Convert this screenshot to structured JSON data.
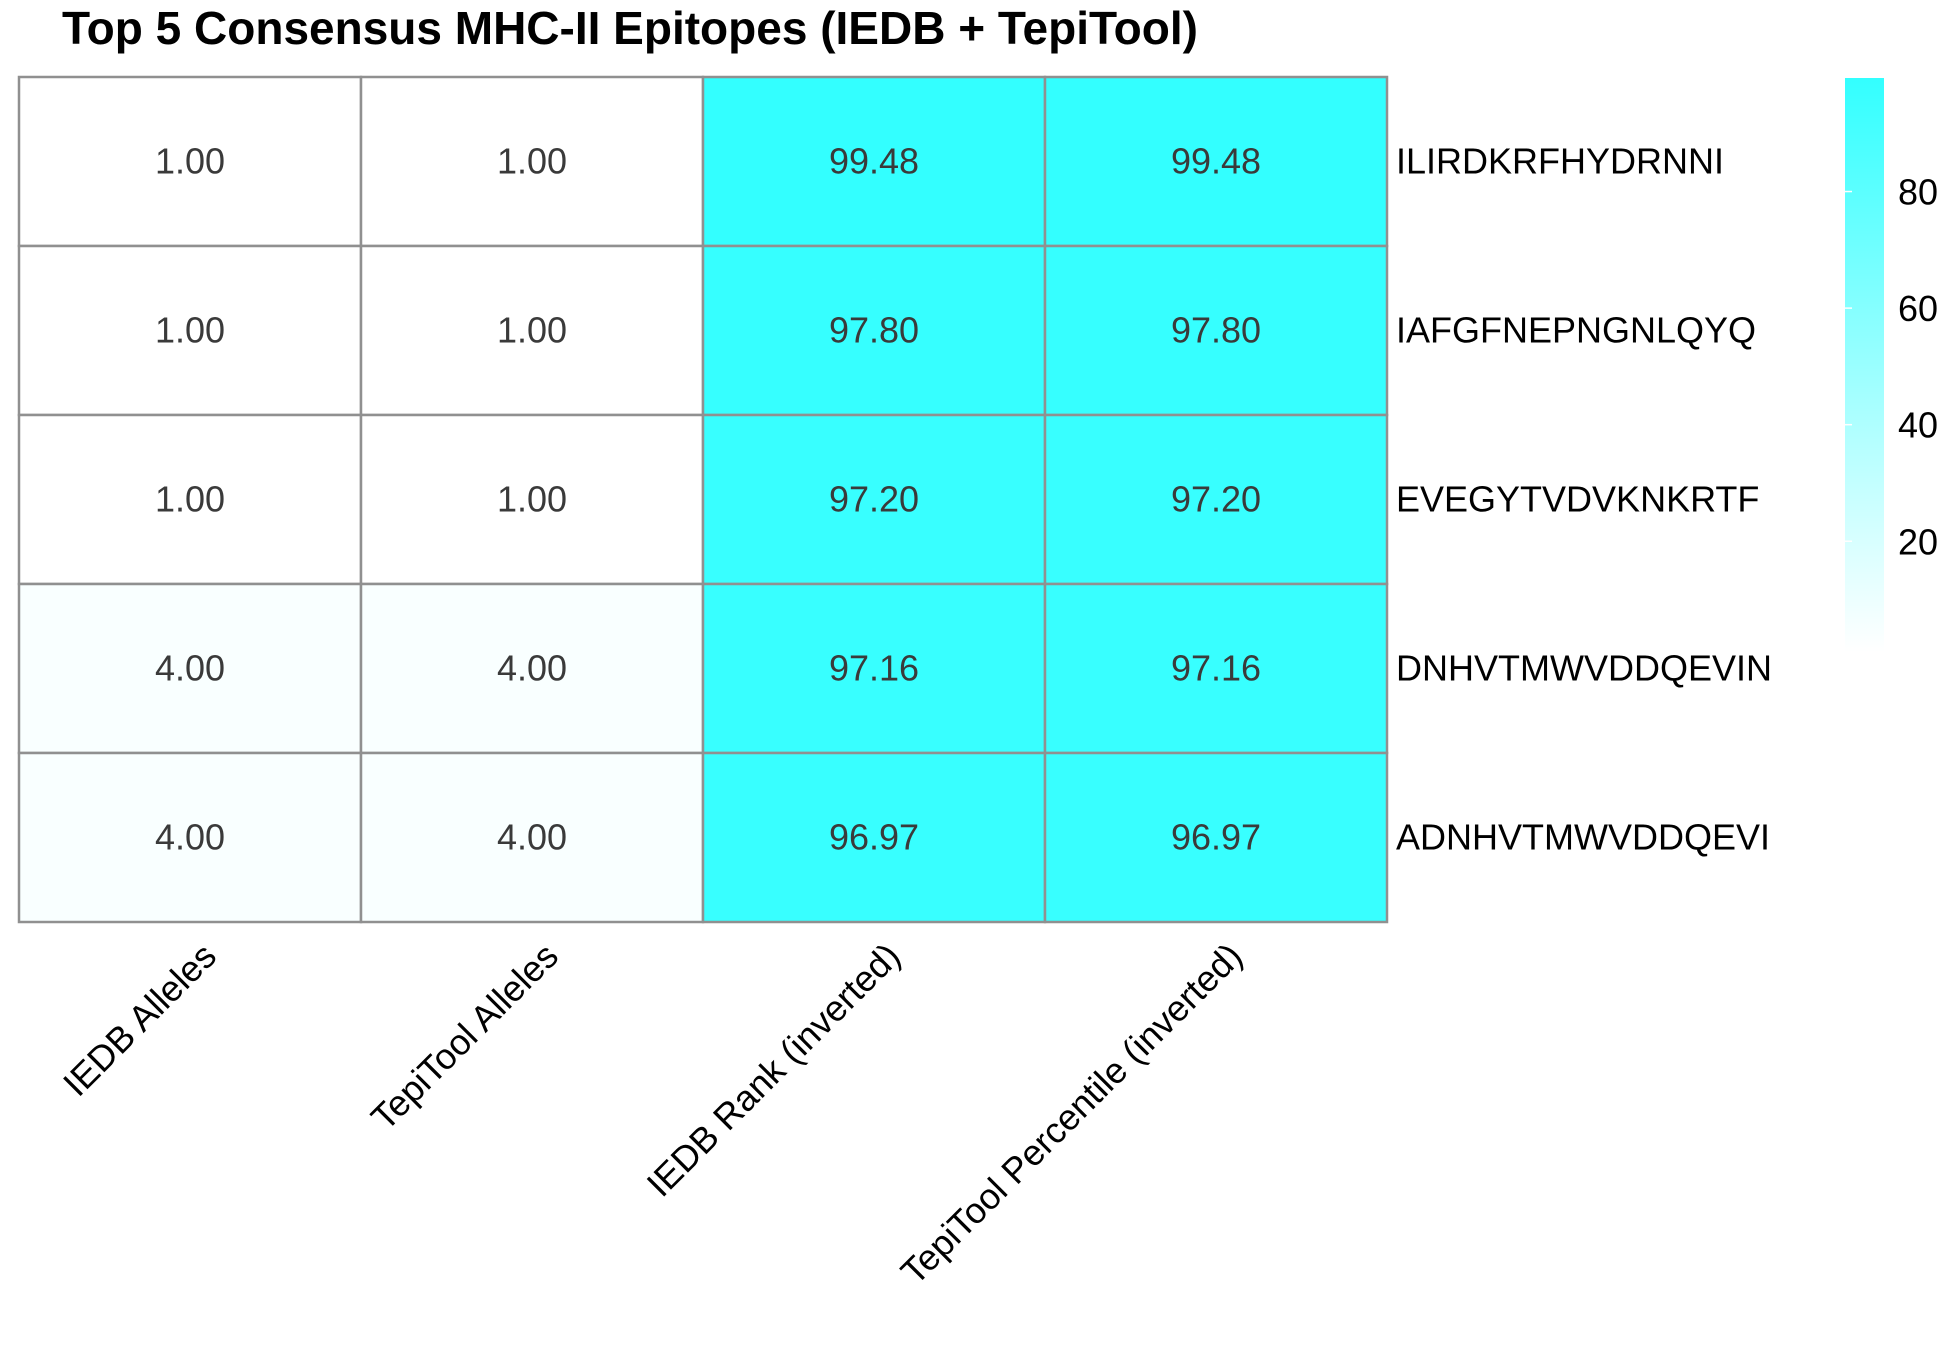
{
  "chart_data": {
    "type": "heatmap",
    "title": "Top 5 Consensus MHC-II Epitopes (IEDB + TepiTool)",
    "columns": [
      "IEDB Alleles",
      "TepiTool Alleles",
      "IEDB Rank (inverted)",
      "TepiTool Percentile (inverted)"
    ],
    "rows": [
      "ILIRDKRFHYDRNNI",
      "IAFGFNEPNGNLQYQ",
      "EVEGYTVDVKNKRTF",
      "DNHVTMWVDDQEVIN",
      "ADNHVTMWVDDQEVI"
    ],
    "values": [
      [
        1.0,
        1.0,
        99.48,
        99.48
      ],
      [
        1.0,
        1.0,
        97.8,
        97.8
      ],
      [
        1.0,
        1.0,
        97.2,
        97.2
      ],
      [
        4.0,
        4.0,
        97.16,
        97.16
      ],
      [
        4.0,
        4.0,
        96.97,
        96.97
      ]
    ],
    "cell_labels": [
      [
        "1.00",
        "1.00",
        "99.48",
        "99.48"
      ],
      [
        "1.00",
        "1.00",
        "97.80",
        "97.80"
      ],
      [
        "1.00",
        "1.00",
        "97.20",
        "97.20"
      ],
      [
        "4.00",
        "4.00",
        "97.16",
        "97.16"
      ],
      [
        "4.00",
        "4.00",
        "96.97",
        "96.97"
      ]
    ],
    "color_scale": {
      "low_color": "#ffffff",
      "high_color": "#33ffff",
      "range": [
        1.0,
        99.48
      ],
      "ticks": [
        20,
        40,
        60,
        80
      ]
    },
    "grid_color": "#909090",
    "legend": "right"
  }
}
